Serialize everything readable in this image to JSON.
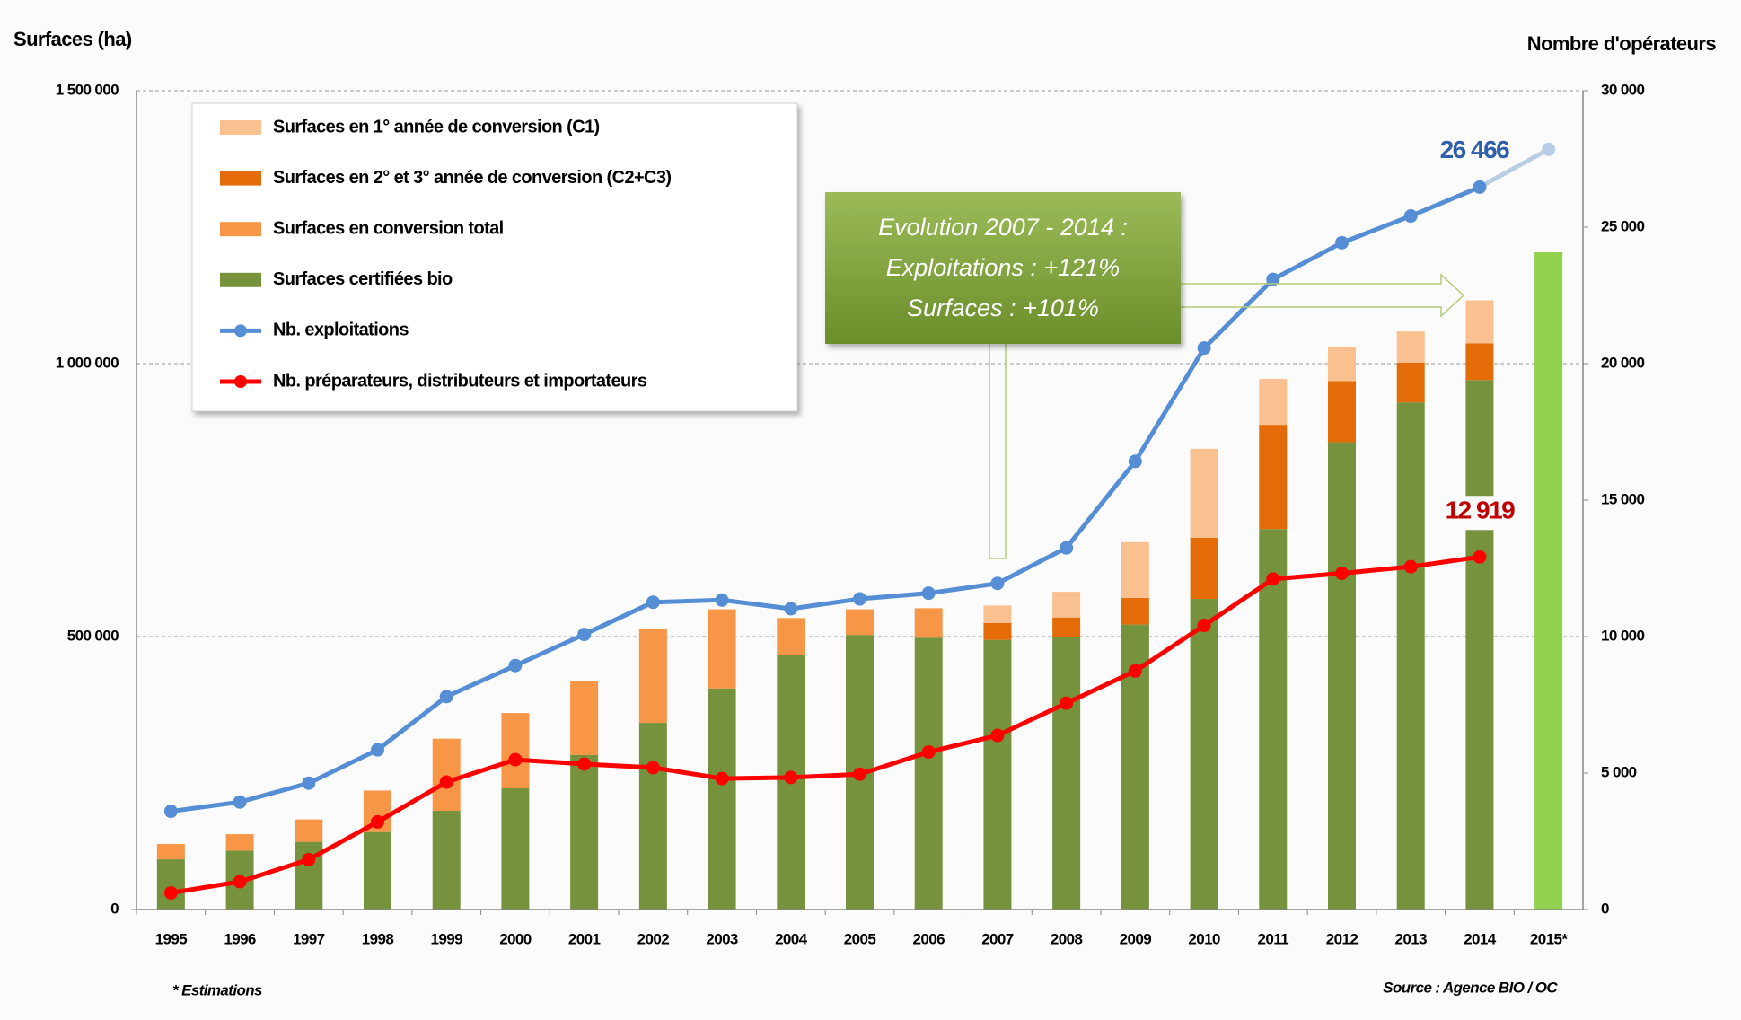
{
  "chart_data": {
    "type": "combo",
    "y_title": "Surfaces (ha)",
    "y2_title": "Nombre d'opérateurs",
    "annotation": [
      "Evolution 2007 - 2014 :",
      "Exploitations : +121%",
      "Surfaces : +101%"
    ],
    "footnote": "* Estimations",
    "source": "Source : Agence BIO / OC",
    "categories": [
      "1995",
      "1996",
      "1997",
      "1998",
      "1999",
      "2000",
      "2001",
      "2002",
      "2003",
      "2004",
      "2005",
      "2006",
      "2007",
      "2008",
      "2009",
      "2010",
      "2011",
      "2012",
      "2013",
      "2014",
      "2015*"
    ],
    "ylim": [
      0,
      1500000
    ],
    "yticks": [
      0,
      {
        "value": 500000,
        "label": "500 000"
      },
      {
        "value": 1000000,
        "label": "1 000 000"
      },
      {
        "value": 1500000,
        "label": "1 500 000"
      }
    ],
    "y2lim": [
      0,
      30000
    ],
    "y2ticks": [
      0,
      {
        "value": 5000,
        "label": "5 000"
      },
      {
        "value": 10000,
        "label": "10 000"
      },
      {
        "value": 15000,
        "label": "15 000"
      },
      {
        "value": 20000,
        "label": "20 000"
      },
      {
        "value": 25000,
        "label": "25 000"
      },
      {
        "value": 30000,
        "label": "30 000"
      }
    ],
    "grid": true,
    "series": [
      {
        "name": "Surfaces en 1° année de conversion (C1)",
        "kind": "bar",
        "color": "#fac090",
        "values": [
          null,
          null,
          null,
          null,
          null,
          null,
          null,
          null,
          null,
          null,
          null,
          null,
          32000,
          47000,
          102000,
          163000,
          84000,
          63000,
          57000,
          79000,
          null
        ]
      },
      {
        "name": "Surfaces en 2° et 3° année de conversion (C2+C3)",
        "kind": "bar",
        "color": "#e36c09",
        "values": [
          null,
          null,
          null,
          null,
          null,
          null,
          null,
          null,
          null,
          null,
          null,
          null,
          31000,
          35000,
          49000,
          112000,
          191000,
          112000,
          73000,
          67000,
          null
        ]
      },
      {
        "name": "Surfaces en conversion total",
        "kind": "bar",
        "color": "#f79646",
        "values": [
          28000,
          30000,
          41000,
          76000,
          132000,
          138000,
          136000,
          173000,
          145000,
          68000,
          47000,
          54000,
          null,
          null,
          null,
          null,
          null,
          null,
          null,
          null,
          null
        ]
      },
      {
        "name": "Surfaces certifiées bio",
        "kind": "bar",
        "color": "#76923c",
        "colors": [
          "#76923c",
          "#76923c",
          "#76923c",
          "#76923c",
          "#76923c",
          "#76923c",
          "#76923c",
          "#76923c",
          "#76923c",
          "#76923c",
          "#76923c",
          "#76923c",
          "#76923c",
          "#76923c",
          "#76923c",
          "#76923c",
          "#76923c",
          "#76923c",
          "#76923c",
          "#76923c",
          "#92d050"
        ],
        "values": [
          92000,
          108000,
          124000,
          142000,
          181000,
          222000,
          283000,
          342000,
          405000,
          466000,
          503000,
          498000,
          494000,
          500000,
          522000,
          569000,
          697000,
          856000,
          929000,
          970000,
          1204000
        ]
      },
      {
        "name": "Nb. exploitations",
        "kind": "line",
        "axis": "y2",
        "color": "#558ed5",
        "colors": [
          "#558ed5",
          "#558ed5",
          "#558ed5",
          "#558ed5",
          "#558ed5",
          "#558ed5",
          "#558ed5",
          "#558ed5",
          "#558ed5",
          "#558ed5",
          "#558ed5",
          "#558ed5",
          "#558ed5",
          "#558ed5",
          "#558ed5",
          "#558ed5",
          "#558ed5",
          "#558ed5",
          "#558ed5",
          "#558ed5",
          "#b9cde5"
        ],
        "values": [
          3600,
          3940,
          4630,
          5850,
          7800,
          8940,
          10080,
          11260,
          11340,
          11020,
          11380,
          11590,
          11950,
          13250,
          16420,
          20570,
          23090,
          24430,
          25410,
          26466,
          27850
        ],
        "value_labels": [
          null,
          null,
          null,
          null,
          null,
          null,
          null,
          null,
          null,
          null,
          null,
          null,
          null,
          null,
          null,
          null,
          null,
          null,
          null,
          "26 466",
          null
        ]
      },
      {
        "name": "Nb. préparateurs, distributeurs et importateurs",
        "kind": "line",
        "axis": "y2",
        "color": "#ff0000",
        "values": [
          610,
          1020,
          1830,
          3210,
          4670,
          5490,
          5330,
          5200,
          4800,
          4840,
          4960,
          5770,
          6380,
          7560,
          8740,
          10410,
          12110,
          12320,
          12560,
          12919,
          null
        ],
        "value_labels": [
          null,
          null,
          null,
          null,
          null,
          null,
          null,
          null,
          null,
          null,
          null,
          null,
          null,
          null,
          null,
          null,
          null,
          null,
          null,
          "12 919",
          null
        ]
      }
    ]
  }
}
